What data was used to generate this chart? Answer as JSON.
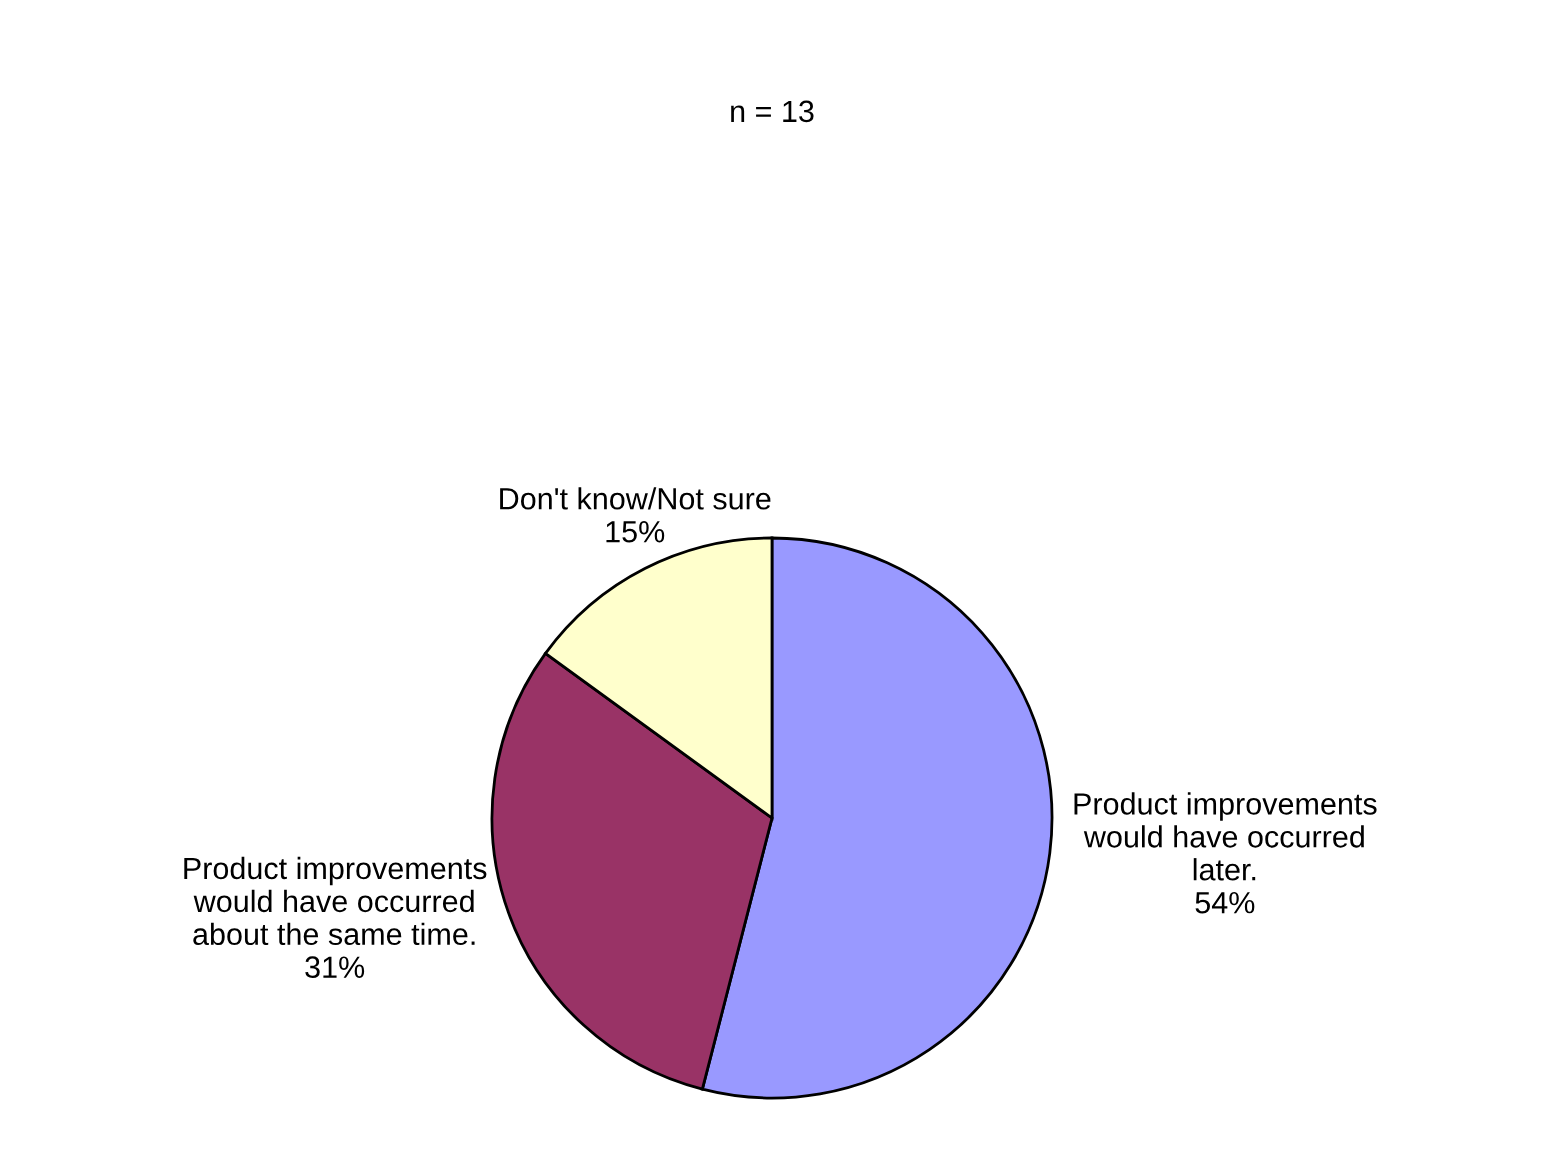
{
  "chart_data": {
    "type": "pie",
    "title": "n = 13",
    "categories": [
      "Product improvements\nwould have occurred\nlater.",
      "Product improvements\nwould have occurred\nabout the same time.",
      "Don't know/Not sure"
    ],
    "values": [
      54,
      31,
      15
    ],
    "value_labels": [
      "54%",
      "31%",
      "15%"
    ],
    "colors": [
      "#9999ff",
      "#993366",
      "#ffffcc"
    ],
    "legend": false
  }
}
